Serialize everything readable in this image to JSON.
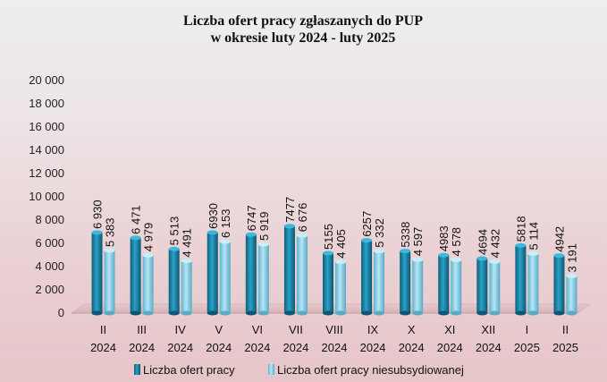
{
  "chart_data": {
    "type": "bar",
    "title_lines": [
      "Liczba ofert pracy zgłaszanych do PUP",
      "w okresie luty 2024 - luty 2025"
    ],
    "categories": [
      {
        "month": "II",
        "year": "2024"
      },
      {
        "month": "III",
        "year": "2024"
      },
      {
        "month": "IV",
        "year": "2024"
      },
      {
        "month": "V",
        "year": "2024"
      },
      {
        "month": "VI",
        "year": "2024"
      },
      {
        "month": "VII",
        "year": "2024"
      },
      {
        "month": "VIII",
        "year": "2024"
      },
      {
        "month": "IX",
        "year": "2024"
      },
      {
        "month": "X",
        "year": "2024"
      },
      {
        "month": "XI",
        "year": "2024"
      },
      {
        "month": "XII",
        "year": "2024"
      },
      {
        "month": "I",
        "year": "2025"
      },
      {
        "month": "II",
        "year": "2025"
      }
    ],
    "series": [
      {
        "name": "Liczba ofert pracy",
        "color": "#1a86a8",
        "values": [
          6930,
          6471,
          5513,
          6930,
          6747,
          7477,
          5155,
          6257,
          5338,
          4983,
          4694,
          5818,
          4942
        ],
        "labels": [
          "6 930",
          "6 471",
          "5 513",
          "6930",
          "6747",
          "7477",
          "5155",
          "6257",
          "5338",
          "4983",
          "4694",
          "5818",
          "4942"
        ]
      },
      {
        "name": "Liczba ofert pracy niesubsydiowanej",
        "color": "#8fd3ea",
        "values": [
          5383,
          4979,
          4491,
          6153,
          5919,
          6676,
          4405,
          5332,
          4597,
          4578,
          4432,
          5114,
          3191
        ],
        "labels": [
          "5 383",
          "4 979",
          "4 491",
          "6 153",
          "5 919",
          "6 676",
          "4 405",
          "5 332",
          "4 597",
          "4 578",
          "4 432",
          "5 114",
          "3 191"
        ]
      }
    ],
    "ylim": [
      0,
      20000
    ],
    "yticks": [
      0,
      2000,
      4000,
      6000,
      8000,
      10000,
      12000,
      14000,
      16000,
      18000,
      20000
    ],
    "ytick_labels": [
      "0",
      "2 000",
      "4 000",
      "6 000",
      "8 000",
      "10 000",
      "12 000",
      "14 000",
      "16 000",
      "18 000",
      "20 000"
    ],
    "grid": false,
    "legend_position": "bottom"
  }
}
